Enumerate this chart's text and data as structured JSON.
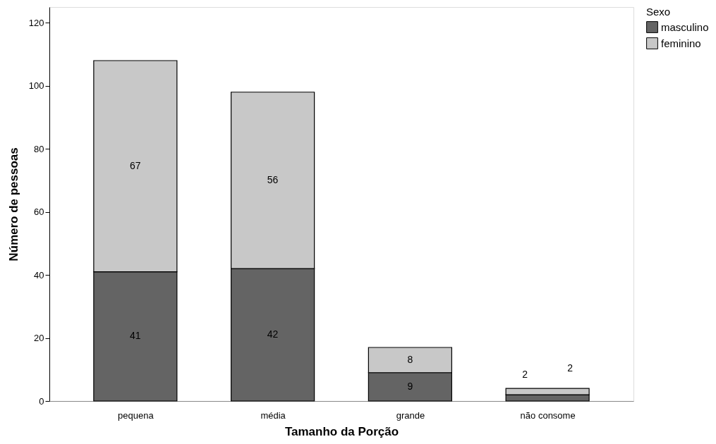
{
  "chart_data": {
    "type": "bar",
    "stacked": true,
    "xlabel": "Tamanho da Porção",
    "ylabel": "Número de pessoas",
    "legend_title": "Sexo",
    "legend": "top right",
    "grid": false,
    "data_labels": true,
    "categories": [
      "pequena",
      "média",
      "grande",
      "não consome"
    ],
    "ylim": [
      0,
      125
    ],
    "yticks": [
      0,
      20,
      40,
      60,
      80,
      100,
      120
    ],
    "series": [
      {
        "name": "masculino",
        "color": "#646464",
        "values": [
          41,
          42,
          9,
          2
        ]
      },
      {
        "name": "feminino",
        "color": "#c8c8c8",
        "values": [
          67,
          56,
          8,
          2
        ]
      }
    ]
  }
}
